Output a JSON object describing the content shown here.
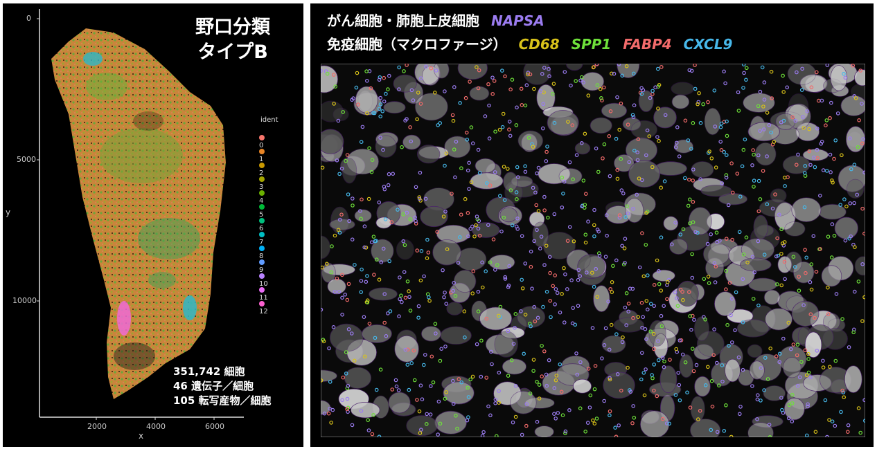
{
  "left_panel": {
    "title_line1": "野口分類",
    "title_line2": "タイプB",
    "y_axis_label": "y",
    "x_axis_label": "x",
    "y_ticks": [
      "0",
      "5000",
      "10000"
    ],
    "x_ticks": [
      "2000",
      "4000",
      "6000"
    ],
    "legend_title": "ident",
    "legend": [
      {
        "label": "0",
        "color": "#f8766d"
      },
      {
        "label": "1",
        "color": "#e88526"
      },
      {
        "label": "2",
        "color": "#c99800"
      },
      {
        "label": "3",
        "color": "#a3a500"
      },
      {
        "label": "4",
        "color": "#6bb100"
      },
      {
        "label": "5",
        "color": "#00ba38"
      },
      {
        "label": "6",
        "color": "#00bf7d"
      },
      {
        "label": "7",
        "color": "#00bfc4"
      },
      {
        "label": "8",
        "color": "#00b0f6"
      },
      {
        "label": "9",
        "color": "#619cff"
      },
      {
        "label": "10",
        "color": "#b983ff"
      },
      {
        "label": "11",
        "color": "#e76bf3"
      },
      {
        "label": "12",
        "color": "#fd61d1"
      }
    ],
    "stats": [
      "351,742 細胞",
      "46 遺伝子／細胞",
      "105 転写産物／細胞"
    ]
  },
  "right_panel": {
    "line1_text": "がん細胞・肺胞上皮細胞",
    "line2_text": "免疫細胞（マクロファージ）",
    "genes": {
      "napsa": {
        "label": "NAPSA",
        "color": "#9b7cf0"
      },
      "cd68": {
        "label": "CD68",
        "color": "#d9c21a"
      },
      "spp1": {
        "label": "SPP1",
        "color": "#6ee03a"
      },
      "fabp4": {
        "label": "FABP4",
        "color": "#f26b6b"
      },
      "cxcl9": {
        "label": "CXCL9",
        "color": "#47b8ea"
      }
    }
  }
}
